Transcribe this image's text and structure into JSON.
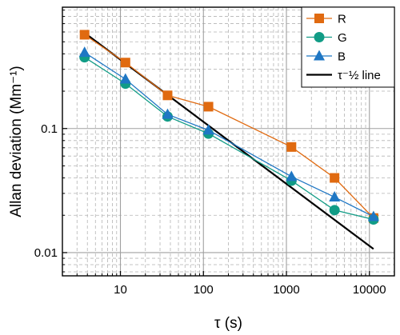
{
  "chart_data": {
    "type": "line",
    "xlabel": "τ (s)",
    "ylabel": "Allan deviation (Mm⁻¹)",
    "x_scale": "log",
    "y_scale": "log",
    "xlim": [
      2,
      20000
    ],
    "ylim": [
      0.0065,
      0.95
    ],
    "x_ticks": [
      {
        "value": 10,
        "label": "10"
      },
      {
        "value": 100,
        "label": "100"
      },
      {
        "value": 1000,
        "label": "1000"
      },
      {
        "value": 10000,
        "label": "10000"
      }
    ],
    "y_ticks": [
      {
        "value": 0.01,
        "label": "0.01"
      },
      {
        "value": 0.1,
        "label": "0.1"
      }
    ],
    "grid": true,
    "legend_position": "top-right",
    "series": [
      {
        "name": "R",
        "color": "#e06a10",
        "marker": "square",
        "x": [
          3.7,
          11.5,
          37,
          115,
          1150,
          3800,
          11200
        ],
        "y": [
          0.57,
          0.34,
          0.185,
          0.15,
          0.071,
          0.04,
          0.019
        ]
      },
      {
        "name": "G",
        "color": "#119c86",
        "marker": "circle",
        "x": [
          3.7,
          11.5,
          37,
          115,
          1150,
          3800,
          11200
        ],
        "y": [
          0.375,
          0.23,
          0.125,
          0.091,
          0.038,
          0.022,
          0.0185
        ]
      },
      {
        "name": "B",
        "color": "#1f77c4",
        "marker": "triangle",
        "x": [
          3.7,
          11.5,
          37,
          115,
          1150,
          3800,
          11200
        ],
        "y": [
          0.41,
          0.25,
          0.13,
          0.097,
          0.041,
          0.028,
          0.0195
        ]
      },
      {
        "name": "τ⁻½ line",
        "color": "#000000",
        "marker": "none",
        "x": [
          3.7,
          11200
        ],
        "y": [
          0.59,
          0.0107
        ]
      }
    ]
  }
}
